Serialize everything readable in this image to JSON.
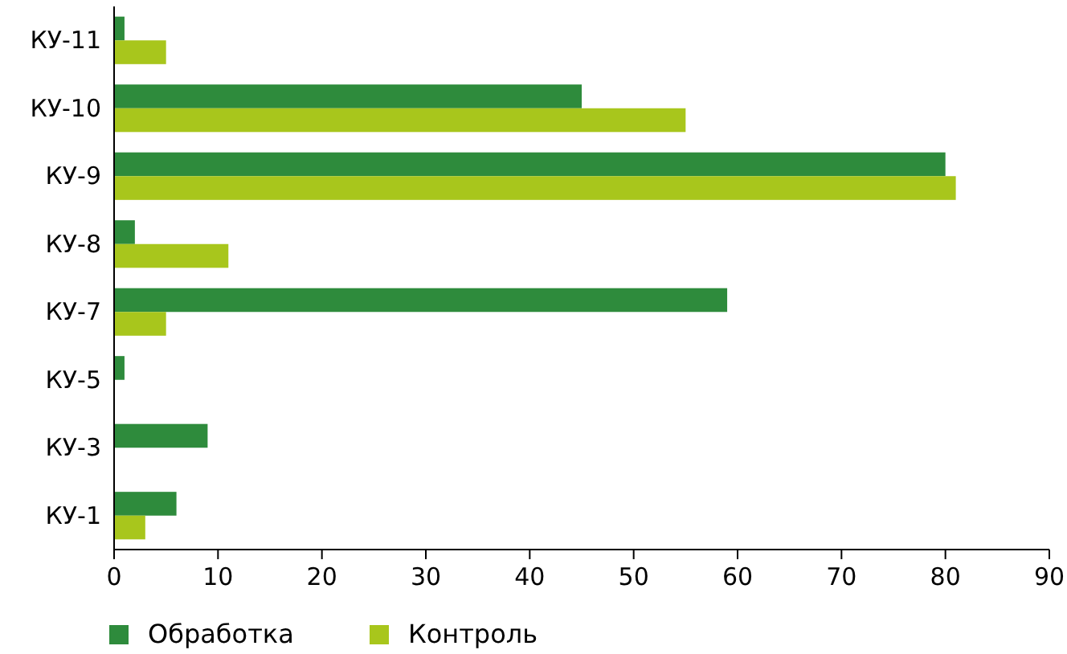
{
  "chart_data": {
    "type": "bar",
    "orientation": "horizontal",
    "categories": [
      "КУ-11",
      "КУ-10",
      "КУ-9",
      "КУ-8",
      "КУ-7",
      "КУ-5",
      "КУ-3",
      "КУ-1"
    ],
    "series": [
      {
        "name": "Обработка",
        "color": "#2e8b3c",
        "values": [
          1,
          45,
          80,
          2,
          59,
          1,
          9,
          6
        ]
      },
      {
        "name": "Контроль",
        "color": "#a8c61c",
        "values": [
          5,
          55,
          81,
          11,
          5,
          null,
          null,
          3
        ]
      }
    ],
    "xlim": [
      0,
      90
    ],
    "xticks": [
      0,
      10,
      20,
      30,
      40,
      50,
      60,
      70,
      80,
      90
    ],
    "grid": false,
    "legend": "bottom"
  }
}
